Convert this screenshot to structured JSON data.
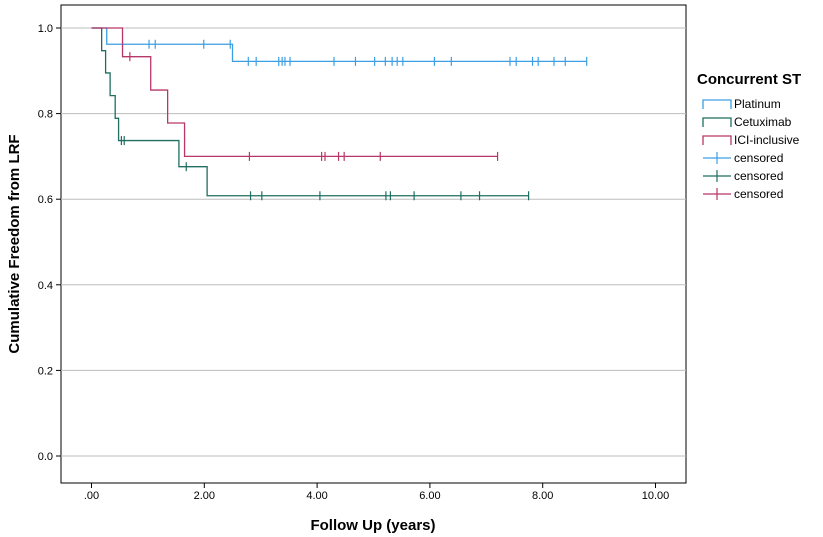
{
  "chart_data": {
    "type": "line",
    "subtype": "kaplan-meier-step",
    "xlabel": "Follow Up (years)",
    "ylabel": "Cumulative Freedom from LRF",
    "xlim": [
      0,
      10
    ],
    "ylim": [
      0,
      1
    ],
    "x_ticks": [
      ".00",
      "2.00",
      "4.00",
      "6.00",
      "8.00",
      "10.00"
    ],
    "x_tick_values": [
      0,
      2,
      4,
      6,
      8,
      10
    ],
    "y_ticks": [
      "0.0",
      "0.2",
      "0.4",
      "0.6",
      "0.8",
      "1.0"
    ],
    "y_tick_values": [
      0,
      0.2,
      0.4,
      0.6,
      0.8,
      1.0
    ],
    "grid": "horizontal",
    "legend": {
      "title": "Concurrent ST",
      "placement": "right",
      "entries": [
        {
          "label": "Platinum",
          "kind": "line",
          "color": "#3d9fe3"
        },
        {
          "label": "Cetuximab",
          "kind": "line",
          "color": "#1f6e61"
        },
        {
          "label": "ICI-inclusive",
          "kind": "line",
          "color": "#b83768"
        },
        {
          "label": "censored",
          "kind": "censor",
          "color": "#3d9fe3"
        },
        {
          "label": "censored",
          "kind": "censor",
          "color": "#1f6e61"
        },
        {
          "label": "censored",
          "kind": "censor",
          "color": "#b83768"
        }
      ]
    },
    "series": [
      {
        "name": "Platinum",
        "color": "#3d9fe3",
        "steps": [
          [
            0,
            1.0
          ],
          [
            0.27,
            0.962
          ],
          [
            2.5,
            0.922
          ],
          [
            8.78,
            0.922
          ]
        ],
        "censored": [
          [
            1.02,
            0.962
          ],
          [
            1.13,
            0.962
          ],
          [
            1.99,
            0.962
          ],
          [
            2.46,
            0.962
          ],
          [
            2.78,
            0.922
          ],
          [
            2.92,
            0.922
          ],
          [
            3.32,
            0.922
          ],
          [
            3.38,
            0.922
          ],
          [
            3.43,
            0.922
          ],
          [
            3.52,
            0.922
          ],
          [
            4.3,
            0.922
          ],
          [
            4.68,
            0.922
          ],
          [
            5.02,
            0.922
          ],
          [
            5.21,
            0.922
          ],
          [
            5.33,
            0.922
          ],
          [
            5.42,
            0.922
          ],
          [
            5.52,
            0.922
          ],
          [
            6.08,
            0.922
          ],
          [
            6.38,
            0.922
          ],
          [
            7.42,
            0.922
          ],
          [
            7.53,
            0.922
          ],
          [
            7.82,
            0.922
          ],
          [
            7.92,
            0.922
          ],
          [
            8.2,
            0.922
          ],
          [
            8.4,
            0.922
          ],
          [
            8.78,
            0.922
          ]
        ]
      },
      {
        "name": "Cetuximab",
        "color": "#1f6e61",
        "steps": [
          [
            0,
            1.0
          ],
          [
            0.18,
            0.947
          ],
          [
            0.25,
            0.895
          ],
          [
            0.33,
            0.842
          ],
          [
            0.42,
            0.789
          ],
          [
            0.48,
            0.737
          ],
          [
            1.55,
            0.676
          ],
          [
            2.05,
            0.608
          ],
          [
            7.75,
            0.608
          ]
        ],
        "censored": [
          [
            0.53,
            0.737
          ],
          [
            0.58,
            0.737
          ],
          [
            1.68,
            0.676
          ],
          [
            2.82,
            0.608
          ],
          [
            3.02,
            0.608
          ],
          [
            4.05,
            0.608
          ],
          [
            5.22,
            0.608
          ],
          [
            5.3,
            0.608
          ],
          [
            5.72,
            0.608
          ],
          [
            6.55,
            0.608
          ],
          [
            6.88,
            0.608
          ],
          [
            7.75,
            0.608
          ]
        ]
      },
      {
        "name": "ICI-inclusive",
        "color": "#b83768",
        "steps": [
          [
            0,
            1.0
          ],
          [
            0.55,
            0.933
          ],
          [
            1.05,
            0.855
          ],
          [
            1.35,
            0.778
          ],
          [
            1.65,
            0.7
          ],
          [
            7.2,
            0.7
          ]
        ],
        "censored": [
          [
            0.68,
            0.933
          ],
          [
            2.8,
            0.7
          ],
          [
            4.08,
            0.7
          ],
          [
            4.14,
            0.7
          ],
          [
            4.38,
            0.7
          ],
          [
            4.48,
            0.7
          ],
          [
            5.12,
            0.7
          ],
          [
            7.2,
            0.7
          ]
        ]
      }
    ]
  }
}
